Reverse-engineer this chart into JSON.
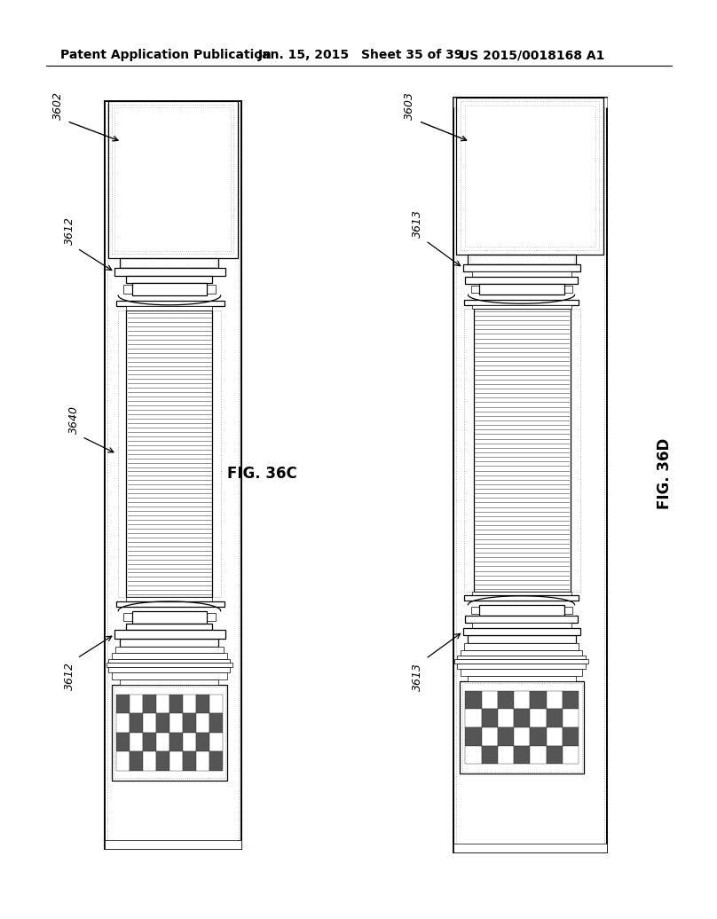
{
  "bg_color": "#ffffff",
  "line_color": "#000000",
  "header_text": "Patent Application Publication",
  "header_date": "Jan. 15, 2015",
  "header_sheet": "Sheet 35 of 39",
  "header_patent": "US 2015/0018168 A1",
  "fig_c_label": "FIG. 36C",
  "fig_d_label": "FIG. 36D",
  "label_3602": "3602",
  "label_3603": "3603",
  "label_3612_top": "3612",
  "label_3612_bot": "3612",
  "label_3613_top": "3613",
  "label_3613_bot": "3613",
  "label_3640": "3640",
  "lw_outer": 1.4,
  "lw_med": 0.9,
  "lw_thin": 0.5,
  "lw_dotted": 0.5
}
